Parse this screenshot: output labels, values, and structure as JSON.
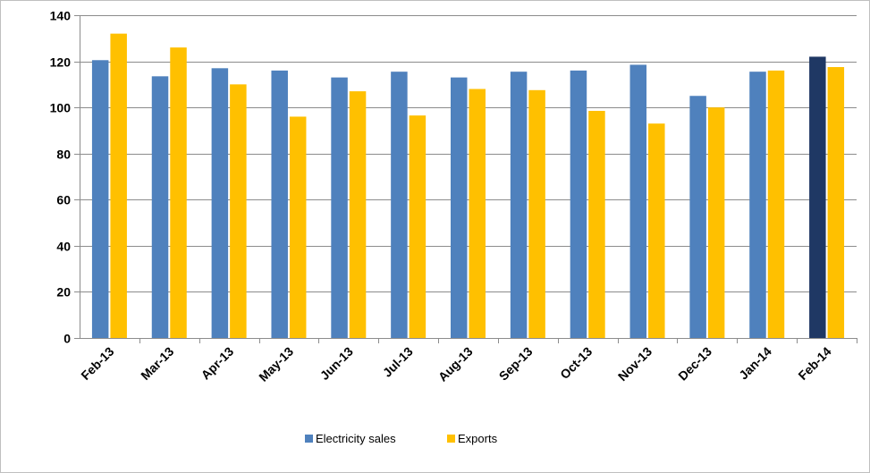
{
  "chart_data": {
    "type": "bar",
    "title": "",
    "xlabel": "",
    "ylabel": "",
    "categories": [
      "Feb-13",
      "Mar-13",
      "Apr-13",
      "May-13",
      "Jun-13",
      "Jul-13",
      "Aug-13",
      "Sep-13",
      "Oct-13",
      "Nov-13",
      "Dec-13",
      "Jan-14",
      "Feb-14"
    ],
    "series": [
      {
        "name": "Electricity sales",
        "color": "#4f81bd",
        "highlight_last_color": "#1f3864",
        "values": [
          120.5,
          113.5,
          117,
          116,
          113,
          115.5,
          113,
          115.5,
          116,
          118.5,
          105,
          115.5,
          122
        ]
      },
      {
        "name": "Exports",
        "color": "#ffc000",
        "values": [
          132,
          126,
          110,
          96,
          107,
          96.5,
          108,
          107.5,
          98.5,
          93,
          100,
          116,
          117.5
        ]
      }
    ],
    "ylim": [
      0,
      140
    ],
    "yticks": [
      0,
      20,
      40,
      60,
      80,
      100,
      120,
      140
    ],
    "grid": true,
    "legend": "bottom-center"
  }
}
